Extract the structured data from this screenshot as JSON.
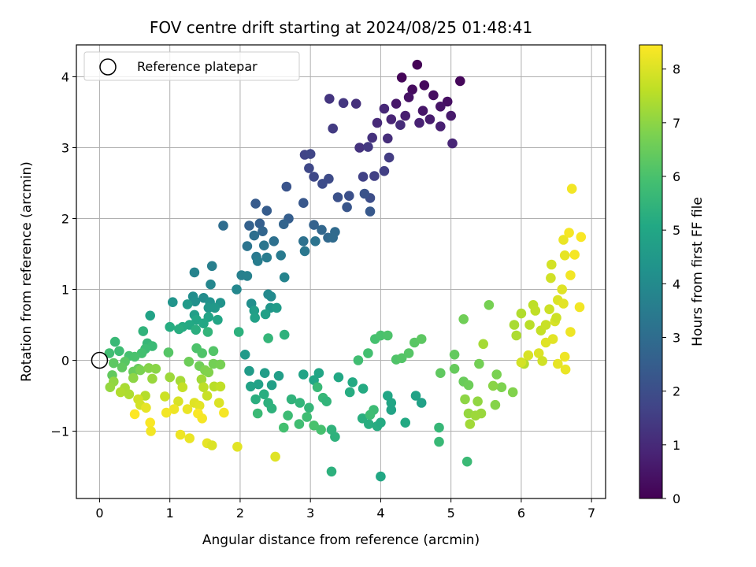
{
  "chart_data": {
    "type": "scatter",
    "title": "FOV centre drift starting at 2024/08/25 01:48:41",
    "xlabel": "Angular distance from reference (arcmin)",
    "ylabel": "Rotation from reference (arcmin)",
    "xlim": [
      -0.33,
      7.2
    ],
    "ylim": [
      -1.95,
      4.45
    ],
    "xticks": [
      0,
      1,
      2,
      3,
      4,
      5,
      6,
      7
    ],
    "yticks": [
      -1,
      0,
      1,
      2,
      3,
      4
    ],
    "grid": true,
    "legend": {
      "location": "top-left",
      "entries": [
        "Reference platepar"
      ]
    },
    "reference_point": {
      "x": 0,
      "y": 0
    },
    "colorbar": {
      "label": "Hours from first FF file",
      "colormap": "viridis",
      "range": [
        0,
        8.45
      ],
      "ticks": [
        0,
        1,
        2,
        3,
        4,
        5,
        6,
        7,
        8
      ]
    },
    "color_value_name": "Hours from first FF file",
    "points": [
      [
        4.52,
        4.17,
        0.05
      ],
      [
        4.3,
        3.99,
        0.1
      ],
      [
        5.13,
        3.94,
        0.15
      ],
      [
        4.62,
        3.88,
        0.2
      ],
      [
        4.45,
        3.82,
        0.25
      ],
      [
        4.75,
        3.74,
        0.3
      ],
      [
        4.95,
        3.65,
        0.35
      ],
      [
        4.4,
        3.71,
        0.4
      ],
      [
        4.85,
        3.58,
        0.45
      ],
      [
        4.6,
        3.52,
        0.5
      ],
      [
        4.22,
        3.62,
        0.55
      ],
      [
        5.0,
        3.45,
        0.6
      ],
      [
        4.7,
        3.4,
        0.65
      ],
      [
        4.35,
        3.45,
        0.7
      ],
      [
        4.85,
        3.3,
        0.75
      ],
      [
        4.55,
        3.35,
        0.8
      ],
      [
        4.15,
        3.4,
        0.85
      ],
      [
        5.02,
        3.06,
        0.9
      ],
      [
        4.05,
        3.55,
        0.95
      ],
      [
        3.95,
        3.35,
        1.0
      ],
      [
        4.28,
        3.32,
        1.05
      ],
      [
        4.1,
        3.13,
        1.1
      ],
      [
        3.65,
        3.62,
        1.15
      ],
      [
        3.88,
        3.14,
        1.2
      ],
      [
        3.7,
        3.0,
        1.25
      ],
      [
        3.27,
        3.69,
        1.3
      ],
      [
        3.47,
        3.63,
        1.35
      ],
      [
        3.82,
        3.01,
        1.4
      ],
      [
        3.32,
        3.27,
        1.45
      ],
      [
        4.12,
        2.86,
        1.5
      ],
      [
        4.05,
        2.67,
        1.55
      ],
      [
        3.91,
        2.6,
        1.6
      ],
      [
        3.75,
        2.59,
        1.65
      ],
      [
        2.92,
        2.9,
        1.7
      ],
      [
        3.0,
        2.91,
        1.75
      ],
      [
        2.98,
        2.71,
        1.8
      ],
      [
        3.05,
        2.59,
        1.85
      ],
      [
        3.26,
        2.56,
        1.9
      ],
      [
        3.17,
        2.49,
        1.95
      ],
      [
        3.85,
        2.29,
        2.0
      ],
      [
        3.55,
        2.32,
        2.05
      ],
      [
        3.39,
        2.3,
        2.1
      ],
      [
        3.77,
        2.35,
        2.15
      ],
      [
        2.66,
        2.45,
        2.2
      ],
      [
        3.52,
        2.16,
        2.25
      ],
      [
        2.9,
        2.22,
        2.3
      ],
      [
        3.85,
        2.1,
        2.35
      ],
      [
        2.22,
        2.21,
        2.4
      ],
      [
        2.38,
        2.11,
        2.45
      ],
      [
        2.69,
        2.0,
        2.5
      ],
      [
        2.28,
        1.93,
        2.55
      ],
      [
        2.13,
        1.9,
        2.6
      ],
      [
        3.05,
        1.91,
        2.65
      ],
      [
        2.62,
        1.92,
        2.7
      ],
      [
        2.32,
        1.82,
        2.75
      ],
      [
        3.16,
        1.84,
        2.8
      ],
      [
        3.25,
        1.73,
        2.85
      ],
      [
        3.35,
        1.81,
        2.9
      ],
      [
        3.32,
        1.73,
        2.95
      ],
      [
        1.76,
        1.9,
        3.0
      ],
      [
        2.2,
        1.76,
        3.05
      ],
      [
        2.48,
        1.68,
        3.1
      ],
      [
        2.9,
        1.68,
        3.15
      ],
      [
        3.07,
        1.68,
        3.2
      ],
      [
        2.1,
        1.61,
        3.25
      ],
      [
        2.34,
        1.62,
        3.3
      ],
      [
        2.92,
        1.54,
        3.35
      ],
      [
        2.23,
        1.46,
        3.4
      ],
      [
        2.58,
        1.48,
        3.45
      ],
      [
        2.38,
        1.45,
        3.5
      ],
      [
        2.25,
        1.4,
        3.55
      ],
      [
        1.6,
        1.33,
        3.6
      ],
      [
        2.02,
        1.2,
        3.65
      ],
      [
        2.1,
        1.19,
        3.7
      ],
      [
        1.35,
        1.24,
        3.75
      ],
      [
        2.63,
        1.17,
        3.8
      ],
      [
        1.58,
        1.07,
        3.85
      ],
      [
        1.95,
        1.0,
        3.9
      ],
      [
        2.4,
        0.93,
        3.95
      ],
      [
        2.44,
        0.9,
        4.0
      ],
      [
        1.48,
        0.88,
        4.05
      ],
      [
        1.33,
        0.9,
        4.1
      ],
      [
        2.16,
        0.8,
        4.15
      ],
      [
        1.36,
        0.83,
        4.2
      ],
      [
        1.57,
        0.82,
        4.25
      ],
      [
        1.72,
        0.81,
        4.3
      ],
      [
        1.04,
        0.82,
        4.35
      ],
      [
        2.43,
        0.74,
        4.4
      ],
      [
        1.55,
        0.74,
        4.45
      ],
      [
        1.64,
        0.74,
        4.5
      ],
      [
        1.25,
        0.79,
        4.55
      ],
      [
        2.52,
        0.74,
        4.6
      ],
      [
        2.2,
        0.7,
        4.65
      ],
      [
        1.35,
        0.64,
        4.7
      ],
      [
        2.36,
        0.65,
        4.75
      ],
      [
        2.21,
        0.6,
        4.8
      ],
      [
        0.72,
        0.63,
        4.85
      ],
      [
        1.55,
        0.61,
        4.9
      ],
      [
        1.68,
        0.57,
        4.95
      ],
      [
        1.38,
        0.57,
        5.0
      ],
      [
        1.48,
        0.52,
        5.05
      ],
      [
        1.28,
        0.5,
        5.1
      ],
      [
        1.18,
        0.47,
        5.15
      ],
      [
        1.0,
        0.47,
        5.2
      ],
      [
        1.13,
        0.44,
        5.25
      ],
      [
        1.37,
        0.43,
        5.3
      ],
      [
        1.98,
        0.4,
        5.35
      ],
      [
        2.63,
        0.36,
        5.4
      ],
      [
        0.62,
        0.41,
        5.45
      ],
      [
        1.54,
        0.4,
        5.5
      ],
      [
        2.4,
        0.31,
        5.55
      ],
      [
        0.68,
        0.24,
        5.6
      ],
      [
        0.22,
        0.26,
        5.65
      ],
      [
        0.75,
        0.2,
        5.7
      ],
      [
        0.65,
        0.16,
        5.75
      ],
      [
        0.28,
        0.13,
        5.8
      ],
      [
        0.14,
        0.1,
        5.85
      ],
      [
        0.6,
        0.1,
        5.9
      ],
      [
        0.42,
        0.06,
        5.95
      ],
      [
        0.5,
        0.05,
        6.0
      ],
      [
        1.38,
        0.17,
        6.05
      ],
      [
        1.46,
        0.1,
        6.1
      ],
      [
        1.62,
        0.13,
        6.15
      ],
      [
        0.98,
        0.11,
        6.2
      ],
      [
        0.36,
        -0.02,
        6.25
      ],
      [
        0.2,
        -0.04,
        6.3
      ],
      [
        0.32,
        -0.1,
        6.35
      ],
      [
        0.18,
        -0.21,
        6.4
      ],
      [
        0.55,
        -0.12,
        6.45
      ],
      [
        0.48,
        -0.16,
        6.5
      ],
      [
        1.27,
        -0.02,
        6.55
      ],
      [
        1.42,
        -0.08,
        6.6
      ],
      [
        1.62,
        -0.05,
        6.65
      ],
      [
        1.72,
        -0.06,
        6.7
      ],
      [
        0.58,
        -0.14,
        6.75
      ],
      [
        1.5,
        -0.14,
        6.8
      ],
      [
        1.55,
        -0.17,
        6.85
      ],
      [
        0.7,
        -0.11,
        6.9
      ],
      [
        0.8,
        -0.12,
        6.95
      ],
      [
        0.48,
        -0.25,
        7.0
      ],
      [
        0.2,
        -0.3,
        7.05
      ],
      [
        0.15,
        -0.38,
        7.1
      ],
      [
        0.75,
        -0.26,
        7.15
      ],
      [
        1.0,
        -0.24,
        7.2
      ],
      [
        1.45,
        -0.27,
        7.25
      ],
      [
        1.15,
        -0.29,
        7.3
      ],
      [
        0.36,
        -0.39,
        7.35
      ],
      [
        0.42,
        -0.48,
        7.4
      ],
      [
        0.3,
        -0.45,
        7.45
      ],
      [
        0.65,
        -0.5,
        7.5
      ],
      [
        1.63,
        -0.37,
        7.55
      ],
      [
        1.48,
        -0.38,
        7.6
      ],
      [
        1.72,
        -0.37,
        7.65
      ],
      [
        1.18,
        -0.38,
        7.7
      ],
      [
        1.53,
        -0.5,
        7.75
      ],
      [
        0.93,
        -0.51,
        7.8
      ],
      [
        0.55,
        -0.55,
        7.85
      ],
      [
        0.58,
        -0.63,
        7.9
      ],
      [
        1.12,
        -0.58,
        7.95
      ],
      [
        1.7,
        -0.6,
        8.0
      ],
      [
        1.35,
        -0.6,
        8.05
      ],
      [
        1.42,
        -0.64,
        8.1
      ],
      [
        0.66,
        -0.67,
        8.15
      ],
      [
        1.25,
        -0.69,
        8.2
      ],
      [
        1.06,
        -0.69,
        8.25
      ],
      [
        0.95,
        -0.74,
        8.3
      ],
      [
        1.77,
        -0.74,
        8.35
      ],
      [
        1.4,
        -0.75,
        8.4
      ],
      [
        0.5,
        -0.76,
        8.45
      ],
      [
        0.72,
        -0.88,
        8.4
      ],
      [
        1.46,
        -0.82,
        8.35
      ],
      [
        0.73,
        -1.0,
        8.3
      ],
      [
        1.15,
        -1.05,
        8.25
      ],
      [
        1.28,
        -1.1,
        8.2
      ],
      [
        1.53,
        -1.17,
        8.15
      ],
      [
        1.96,
        -1.22,
        8.1
      ],
      [
        2.5,
        -1.36,
        8.05
      ],
      [
        1.6,
        -1.2,
        8.0
      ],
      [
        2.07,
        0.08,
        4.55
      ],
      [
        2.13,
        -0.15,
        4.6
      ],
      [
        2.35,
        -0.18,
        4.65
      ],
      [
        2.55,
        -0.22,
        4.7
      ],
      [
        2.45,
        -0.35,
        4.75
      ],
      [
        2.26,
        -0.34,
        4.8
      ],
      [
        2.15,
        -0.37,
        4.85
      ],
      [
        2.9,
        -0.2,
        4.9
      ],
      [
        3.12,
        -0.18,
        4.95
      ],
      [
        3.05,
        -0.28,
        5.0
      ],
      [
        3.4,
        -0.24,
        5.05
      ],
      [
        3.6,
        -0.31,
        5.1
      ],
      [
        3.75,
        -0.4,
        5.15
      ],
      [
        3.56,
        -0.45,
        5.2
      ],
      [
        2.34,
        -0.48,
        5.25
      ],
      [
        2.22,
        -0.55,
        5.3
      ],
      [
        2.4,
        -0.6,
        5.35
      ],
      [
        2.45,
        -0.68,
        5.4
      ],
      [
        2.73,
        -0.55,
        5.45
      ],
      [
        2.85,
        -0.6,
        5.5
      ],
      [
        2.98,
        -0.67,
        5.55
      ],
      [
        3.18,
        -0.53,
        5.6
      ],
      [
        3.1,
        -0.38,
        5.65
      ],
      [
        2.25,
        -0.75,
        5.7
      ],
      [
        2.68,
        -0.78,
        5.75
      ],
      [
        2.95,
        -0.8,
        5.8
      ],
      [
        2.84,
        -0.9,
        5.85
      ],
      [
        2.62,
        -0.95,
        5.9
      ],
      [
        3.15,
        -0.98,
        5.95
      ],
      [
        3.05,
        -0.92,
        6.0
      ],
      [
        3.23,
        -0.58,
        5.5
      ],
      [
        3.3,
        -0.98,
        5.45
      ],
      [
        3.35,
        -1.08,
        5.4
      ],
      [
        3.3,
        -1.57,
        5.35
      ],
      [
        3.74,
        -0.82,
        5.3
      ],
      [
        3.83,
        -0.9,
        5.25
      ],
      [
        3.95,
        -0.93,
        5.2
      ],
      [
        4.0,
        -0.88,
        5.15
      ],
      [
        4.35,
        -0.88,
        5.1
      ],
      [
        4.0,
        -1.64,
        5.05
      ],
      [
        4.1,
        -0.5,
        5.0
      ],
      [
        4.15,
        -0.6,
        4.95
      ],
      [
        4.15,
        -0.7,
        4.9
      ],
      [
        4.5,
        -0.5,
        4.85
      ],
      [
        4.58,
        -0.6,
        4.8
      ],
      [
        4.83,
        -0.95,
        5.6
      ],
      [
        4.83,
        -1.15,
        5.65
      ],
      [
        5.23,
        -1.43,
        5.7
      ],
      [
        3.9,
        -0.7,
        5.75
      ],
      [
        3.85,
        -0.77,
        5.8
      ],
      [
        3.68,
        0.0,
        5.85
      ],
      [
        3.82,
        0.1,
        5.9
      ],
      [
        3.92,
        0.3,
        5.95
      ],
      [
        4.0,
        0.35,
        6.0
      ],
      [
        4.1,
        0.35,
        6.05
      ],
      [
        4.22,
        0.01,
        6.1
      ],
      [
        4.3,
        0.03,
        6.15
      ],
      [
        4.4,
        0.1,
        6.2
      ],
      [
        4.48,
        0.25,
        6.25
      ],
      [
        4.58,
        0.3,
        6.3
      ],
      [
        4.85,
        -0.18,
        6.35
      ],
      [
        5.05,
        0.08,
        6.4
      ],
      [
        5.05,
        -0.12,
        6.45
      ],
      [
        5.18,
        -0.3,
        6.5
      ],
      [
        5.25,
        -0.35,
        6.55
      ],
      [
        5.18,
        0.58,
        6.6
      ],
      [
        5.4,
        -0.05,
        6.65
      ],
      [
        5.54,
        0.78,
        6.7
      ],
      [
        5.65,
        -0.2,
        6.75
      ],
      [
        5.72,
        -0.38,
        6.8
      ],
      [
        5.88,
        -0.45,
        6.85
      ],
      [
        5.63,
        -0.63,
        6.9
      ],
      [
        5.6,
        -0.36,
        6.95
      ],
      [
        5.2,
        -0.55,
        7.0
      ],
      [
        5.38,
        -0.58,
        7.05
      ],
      [
        5.25,
        -0.75,
        7.1
      ],
      [
        5.43,
        -0.75,
        7.15
      ],
      [
        5.35,
        -0.78,
        7.2
      ],
      [
        5.27,
        -0.9,
        7.25
      ],
      [
        5.46,
        0.23,
        7.3
      ],
      [
        5.9,
        0.5,
        7.35
      ],
      [
        5.93,
        0.35,
        7.4
      ],
      [
        6.0,
        0.66,
        7.45
      ],
      [
        6.04,
        -0.05,
        7.5
      ],
      [
        6.12,
        0.5,
        7.55
      ],
      [
        6.17,
        0.78,
        7.6
      ],
      [
        6.2,
        0.7,
        7.65
      ],
      [
        6.28,
        0.42,
        7.7
      ],
      [
        6.35,
        0.5,
        7.75
      ],
      [
        6.4,
        0.72,
        7.8
      ],
      [
        6.42,
        1.16,
        7.85
      ],
      [
        6.43,
        1.35,
        7.9
      ],
      [
        6.48,
        0.55,
        7.95
      ],
      [
        6.52,
        0.85,
        8.0
      ],
      [
        6.58,
        1.0,
        8.05
      ],
      [
        6.6,
        0.8,
        8.1
      ],
      [
        6.62,
        1.48,
        8.15
      ],
      [
        6.6,
        1.7,
        8.2
      ],
      [
        6.7,
        0.4,
        8.25
      ],
      [
        6.72,
        2.42,
        8.3
      ],
      [
        6.68,
        1.8,
        8.35
      ],
      [
        6.85,
        1.74,
        8.4
      ],
      [
        6.76,
        1.49,
        8.35
      ],
      [
        6.83,
        0.75,
        8.3
      ],
      [
        6.62,
        0.05,
        8.25
      ],
      [
        6.63,
        -0.13,
        8.2
      ],
      [
        6.52,
        -0.05,
        8.15
      ],
      [
        6.45,
        0.3,
        8.1
      ],
      [
        6.35,
        0.25,
        8.05
      ],
      [
        6.25,
        0.1,
        8.0
      ],
      [
        6.1,
        0.07,
        7.95
      ],
      [
        6.0,
        -0.03,
        7.9
      ],
      [
        6.3,
        -0.01,
        7.85
      ],
      [
        6.5,
        0.6,
        7.8
      ],
      [
        6.7,
        1.2,
        8.3
      ]
    ]
  }
}
